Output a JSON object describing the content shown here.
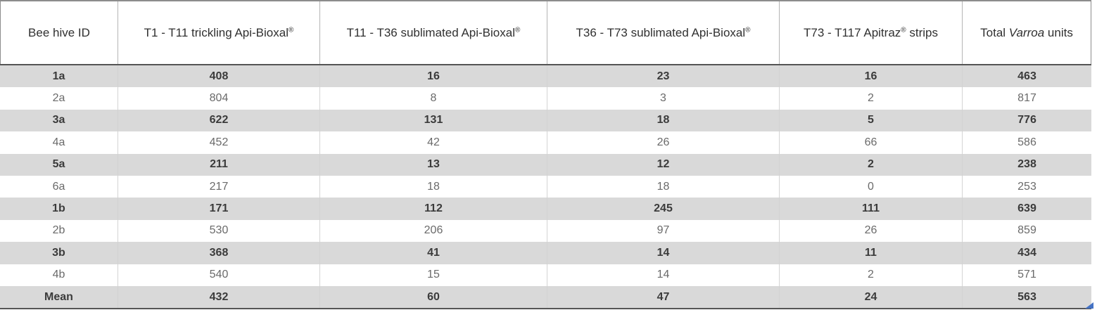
{
  "table": {
    "columns": [
      {
        "parts": [
          {
            "t": "Bee hive ID"
          }
        ]
      },
      {
        "parts": [
          {
            "t": "T1 - T11 trickling Api-Bioxal"
          },
          {
            "t": "®",
            "style": "sup"
          }
        ]
      },
      {
        "parts": [
          {
            "t": "T11 - T36 sublimated Api-Bioxal"
          },
          {
            "t": "®",
            "style": "sup"
          }
        ]
      },
      {
        "parts": [
          {
            "t": "T36 - T73 sublimated Api-Bioxal"
          },
          {
            "t": "®",
            "style": "sup"
          }
        ]
      },
      {
        "parts": [
          {
            "t": "T73 - T117 Apitraz"
          },
          {
            "t": "®",
            "style": "sup"
          },
          {
            "t": " strips"
          }
        ]
      },
      {
        "parts": [
          {
            "t": "Total "
          },
          {
            "t": "Varroa",
            "style": "italic"
          },
          {
            "t": " units"
          }
        ]
      }
    ],
    "rows": [
      {
        "id": "1a",
        "values": [
          408,
          16,
          23,
          16,
          463
        ],
        "shaded": true,
        "is_summary": false
      },
      {
        "id": "2a",
        "values": [
          804,
          8,
          3,
          2,
          817
        ],
        "shaded": false,
        "is_summary": false
      },
      {
        "id": "3a",
        "values": [
          622,
          131,
          18,
          5,
          776
        ],
        "shaded": true,
        "is_summary": false
      },
      {
        "id": "4a",
        "values": [
          452,
          42,
          26,
          66,
          586
        ],
        "shaded": false,
        "is_summary": false
      },
      {
        "id": "5a",
        "values": [
          211,
          13,
          12,
          2,
          238
        ],
        "shaded": true,
        "is_summary": false
      },
      {
        "id": "6a",
        "values": [
          217,
          18,
          18,
          0,
          253
        ],
        "shaded": false,
        "is_summary": false
      },
      {
        "id": "1b",
        "values": [
          171,
          112,
          245,
          111,
          639
        ],
        "shaded": true,
        "is_summary": false
      },
      {
        "id": "2b",
        "values": [
          530,
          206,
          97,
          26,
          859
        ],
        "shaded": false,
        "is_summary": false
      },
      {
        "id": "3b",
        "values": [
          368,
          41,
          14,
          11,
          434
        ],
        "shaded": true,
        "is_summary": false
      },
      {
        "id": "4b",
        "values": [
          540,
          15,
          14,
          2,
          571
        ],
        "shaded": false,
        "is_summary": false
      },
      {
        "id": "Mean",
        "values": [
          432,
          60,
          47,
          24,
          563
        ],
        "shaded": true,
        "is_summary": true
      }
    ]
  },
  "colors": {
    "shaded_row_bg": "#d9d9d9",
    "bold_text": "#3b3b3b",
    "plain_text": "#6a6a6a",
    "header_text": "#303030",
    "rule_dark": "#555555",
    "rule_light": "#b5b5b5",
    "corner_triangle": "#4472c4"
  },
  "chart_data": {
    "type": "table",
    "title": "",
    "categories": [
      "Bee hive ID",
      "T1 - T11 trickling Api-Bioxal®",
      "T11 - T36 sublimated Api-Bioxal®",
      "T36 - T73 sublimated Api-Bioxal®",
      "T73 - T117 Apitraz® strips",
      "Total Varroa units"
    ],
    "series": [
      {
        "name": "1a",
        "values": [
          408,
          16,
          23,
          16,
          463
        ]
      },
      {
        "name": "2a",
        "values": [
          804,
          8,
          3,
          2,
          817
        ]
      },
      {
        "name": "3a",
        "values": [
          622,
          131,
          18,
          5,
          776
        ]
      },
      {
        "name": "4a",
        "values": [
          452,
          42,
          26,
          66,
          586
        ]
      },
      {
        "name": "5a",
        "values": [
          211,
          13,
          12,
          2,
          238
        ]
      },
      {
        "name": "6a",
        "values": [
          217,
          18,
          18,
          0,
          253
        ]
      },
      {
        "name": "1b",
        "values": [
          171,
          112,
          245,
          111,
          639
        ]
      },
      {
        "name": "2b",
        "values": [
          530,
          206,
          97,
          26,
          859
        ]
      },
      {
        "name": "3b",
        "values": [
          368,
          41,
          14,
          11,
          434
        ]
      },
      {
        "name": "4b",
        "values": [
          540,
          15,
          14,
          2,
          571
        ]
      },
      {
        "name": "Mean",
        "values": [
          432,
          60,
          47,
          24,
          563
        ]
      }
    ]
  }
}
